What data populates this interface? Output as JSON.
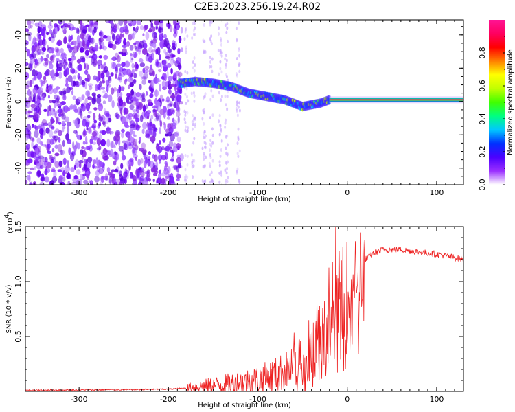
{
  "title": "C2E3.2023.256.19.24.R02",
  "chart_data": [
    {
      "type": "heatmap",
      "name": "spectrogram",
      "xlabel": "Height of straight line (km)",
      "ylabel": "Frequency (Hz)",
      "xlim": [
        -360,
        130
      ],
      "ylim": [
        -50,
        49
      ],
      "x_ticks": [
        -300,
        -200,
        -100,
        0,
        100
      ],
      "x_tick_labels": [
        "-300",
        "-200",
        "-100",
        "0",
        "100"
      ],
      "y_ticks": [
        -40,
        -20,
        0,
        20,
        40
      ],
      "y_tick_labels": [
        "-40",
        "-20",
        "0",
        "20",
        "40"
      ],
      "colorbar": {
        "label": "Normalized spectral amplitude",
        "range": [
          0,
          1
        ],
        "ticks": [
          0.0,
          0.2,
          0.4,
          0.6,
          0.8
        ],
        "tick_labels": [
          "0.0",
          "0.2",
          "0.4",
          "0.6",
          "0.8"
        ],
        "colors": [
          "#ffffff",
          "#9b30ff",
          "#4b00ff",
          "#0030ff",
          "#00c8ff",
          "#00ff80",
          "#40ff00",
          "#c0ff00",
          "#ffff00",
          "#ff8000",
          "#ff0000",
          "#ff0060",
          "#ff1493"
        ]
      },
      "signal_trace": {
        "x": [
          -185,
          -170,
          -150,
          -130,
          -110,
          -90,
          -70,
          -50,
          -40,
          -30,
          -20,
          0,
          50,
          100,
          130
        ],
        "y": [
          11,
          12,
          11,
          9,
          5,
          3,
          1,
          -3,
          -2,
          -1,
          1,
          1,
          1,
          1,
          1
        ]
      },
      "noise_edge_x": -185
    },
    {
      "type": "line",
      "name": "snr",
      "xlabel": "Height of straight line (km)",
      "ylabel": "SNR (10 * v/v)",
      "multiplier_label": "(x10",
      "multiplier_exp": "4",
      "multiplier_close": ")",
      "xlim": [
        -360,
        130
      ],
      "ylim": [
        0,
        1.5
      ],
      "x_ticks": [
        -300,
        -200,
        -100,
        0,
        100
      ],
      "x_tick_labels": [
        "-300",
        "-200",
        "-100",
        "0",
        "100"
      ],
      "y_ticks": [
        0.5,
        1.0,
        1.5
      ],
      "y_tick_labels": [
        "0.5",
        "1.0",
        "1.5"
      ],
      "line_color": "#ee2222",
      "envelope": {
        "x": [
          -360,
          -250,
          -200,
          -180,
          -160,
          -140,
          -120,
          -100,
          -80,
          -60,
          -50,
          -40,
          -30,
          -20,
          -10,
          0,
          10,
          20,
          30,
          40,
          60,
          80,
          100,
          120,
          130
        ],
        "y": [
          0.01,
          0.015,
          0.02,
          0.03,
          0.05,
          0.06,
          0.08,
          0.1,
          0.15,
          0.22,
          0.3,
          0.42,
          0.55,
          0.7,
          0.82,
          0.95,
          1.1,
          1.2,
          1.26,
          1.29,
          1.29,
          1.27,
          1.25,
          1.22,
          1.2
        ]
      },
      "spike": {
        "x": -13,
        "y": 1.5
      }
    }
  ]
}
